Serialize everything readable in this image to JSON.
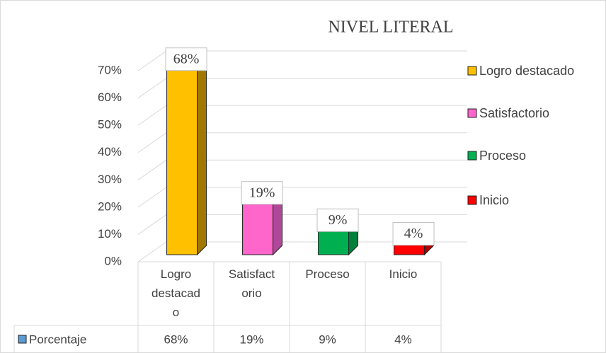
{
  "chart_data": {
    "type": "bar3d",
    "title": "NIVEL LITERAL",
    "categories": [
      "Logro destacado",
      "Satisfactorio",
      "Proceso",
      "Inicio"
    ],
    "series": [
      {
        "name": "Porcentaje",
        "color": "#5B9BD5",
        "values": [
          68,
          19,
          9,
          4
        ],
        "value_labels": [
          "68%",
          "19%",
          "9%",
          "4%"
        ]
      }
    ],
    "colors": [
      "#FFC000",
      "#FF66CC",
      "#00B050",
      "#FF0000"
    ],
    "side_colors": [
      "#A07800",
      "#B0489A",
      "#00803A",
      "#B00000"
    ],
    "ylim": [
      0,
      70
    ],
    "yticks": [
      {
        "value": 0,
        "label": "0%"
      },
      {
        "value": 10,
        "label": "10%"
      },
      {
        "value": 20,
        "label": "20%"
      },
      {
        "value": 30,
        "label": "30%"
      },
      {
        "value": 40,
        "label": "40%"
      },
      {
        "value": 50,
        "label": "50%"
      },
      {
        "value": 60,
        "label": "60%"
      },
      {
        "value": 70,
        "label": "70%"
      }
    ],
    "grid": true,
    "legend": "right",
    "data_table": true
  }
}
